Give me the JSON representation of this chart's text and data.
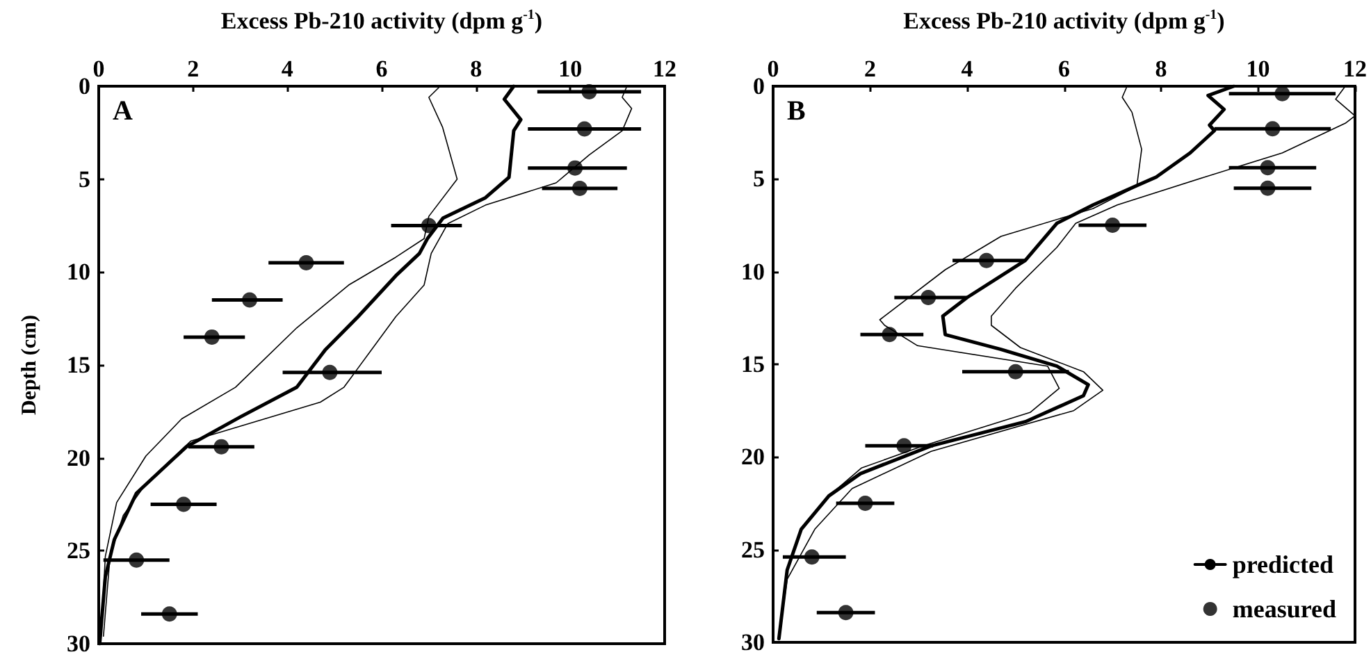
{
  "chart_data": [
    {
      "type": "line",
      "xlabel": "Excess Pb-210 activity (dpm g$^{-1}$)",
      "ylabel": "Depth (cm)",
      "annotations": [
        "A"
      ],
      "xlim": [
        0,
        12
      ],
      "xticks": [
        0,
        2,
        4,
        6,
        8,
        10,
        12
      ],
      "ylim": [
        30,
        0
      ],
      "yticks": [
        0,
        5,
        10,
        15,
        20,
        25,
        30
      ],
      "series": [
        {
          "color": "#000000",
          "marker": "none",
          "line_style": "solid",
          "x": [
            8.8,
            8.6,
            8.95,
            8.8,
            8.7,
            8.2,
            7.3,
            6.97,
            6.8,
            6.3,
            5.5,
            4.8,
            4.2,
            3.0,
            1.86,
            0.8,
            0.33,
            0.14,
            0.02
          ],
          "values": [
            0,
            0.7,
            1.8,
            2.4,
            4.9,
            6,
            7.1,
            8.2,
            9,
            10.2,
            12.4,
            14.2,
            16.2,
            17.8,
            19.4,
            21.9,
            24.4,
            26.4,
            30
          ]
        },
        {
          "color": "#000000",
          "marker": "none",
          "line_style": "solid",
          "x": [
            7.24,
            7.0,
            7.29,
            7.6,
            7.0,
            6.9,
            6.3,
            5.3,
            4.2,
            2.9,
            1.76,
            1.0,
            0.38,
            0.14,
            0.05
          ],
          "values": [
            0,
            0.6,
            2.2,
            5.0,
            7.0,
            8.2,
            9.2,
            10.7,
            13.0,
            16.2,
            17.9,
            19.9,
            22.4,
            25.3,
            29.6
          ]
        },
        {
          "color": "#000000",
          "marker": "none",
          "line_style": "solid",
          "x": [
            11.2,
            11.1,
            11.3,
            11.1,
            10.4,
            9.7,
            8.2,
            7.4,
            7.05,
            6.9,
            6.3,
            5.2,
            4.7,
            1.95,
            1.0,
            0.52,
            0.24,
            0.1
          ],
          "values": [
            0,
            0.6,
            1.2,
            2.4,
            3.7,
            5.2,
            6.4,
            7.4,
            9.0,
            10.7,
            12.4,
            16.2,
            17.0,
            19.1,
            21.4,
            23.1,
            25.3,
            29.6
          ]
        },
        {
          "type": "scatter",
          "color": "#000000",
          "marker": "circle",
          "x": [
            10.4,
            10.3,
            10.1,
            10.2,
            7.0,
            4.4,
            3.2,
            2.4,
            4.9,
            2.6,
            1.8,
            0.8,
            1.5
          ],
          "values": [
            0.3,
            2.3,
            4.4,
            5.5,
            7.5,
            9.5,
            11.5,
            13.5,
            15.4,
            19.4,
            22.5,
            25.5,
            28.4
          ],
          "xerrors": [
            [
              9.3,
              11.5
            ],
            [
              9.1,
              11.5
            ],
            [
              9.1,
              11.2
            ],
            [
              9.4,
              11.0
            ],
            [
              6.2,
              7.7
            ],
            [
              3.6,
              5.2
            ],
            [
              2.4,
              3.9
            ],
            [
              1.8,
              3.1
            ],
            [
              3.9,
              6.0
            ],
            [
              1.9,
              3.3
            ],
            [
              1.1,
              2.5
            ],
            [
              0.1,
              1.5
            ],
            [
              0.9,
              2.1
            ]
          ]
        }
      ]
    },
    {
      "type": "line",
      "xlabel": "Excess Pb-210 activity (dpm g$^{-1}$)",
      "annotations": [
        "B"
      ],
      "xlim": [
        0,
        12
      ],
      "xticks": [
        0,
        2,
        4,
        6,
        8,
        10,
        12
      ],
      "ylim": [
        30,
        0
      ],
      "yticks": [
        0,
        5,
        10,
        15,
        20,
        25,
        30
      ],
      "legend": "bottom right",
      "series": [
        {
          "name": "predicted",
          "color": "#000000",
          "marker": "none",
          "line_style": "solid",
          "x": [
            9.5,
            8.97,
            9.3,
            9.0,
            9.1,
            8.6,
            7.9,
            6.6,
            5.85,
            5.2,
            4.0,
            3.5,
            3.55,
            4.7,
            5.85,
            6.5,
            6.4,
            5.2,
            3.26,
            1.8,
            1.15,
            0.58,
            0.29,
            0.12
          ],
          "values": [
            0,
            0.5,
            1.25,
            2.1,
            2.4,
            3.6,
            4.9,
            6.4,
            7.4,
            9.4,
            11.4,
            12.4,
            13.4,
            14.2,
            15.1,
            16.1,
            16.7,
            18.1,
            19.4,
            20.9,
            22.1,
            23.9,
            26.1,
            29.8
          ]
        },
        {
          "color": "#000000",
          "marker": "none",
          "line_style": "solid",
          "x": [
            7.3,
            7.2,
            7.4,
            7.6,
            7.5,
            6.6,
            4.7,
            3.55,
            2.2,
            2.3,
            2.98,
            5.66,
            5.9,
            5.3,
            3.1,
            1.82,
            1.15,
            0.58,
            0.29,
            0.12
          ],
          "values": [
            0,
            0.6,
            1.4,
            3.4,
            5.4,
            6.6,
            8.1,
            9.9,
            12.6,
            12.9,
            14.0,
            15.1,
            16.3,
            17.6,
            19.4,
            20.6,
            22.1,
            23.9,
            26.1,
            29.8
          ]
        },
        {
          "color": "#000000",
          "marker": "none",
          "line_style": "solid",
          "x": [
            11.8,
            11.6,
            12.0,
            11.8,
            10.5,
            8.9,
            7.1,
            6.24,
            5.85,
            5.0,
            4.5,
            4.5,
            5.1,
            6.4,
            6.8,
            6.2,
            3.26,
            1.63,
            0.86,
            0.29,
            0.12
          ],
          "values": [
            0,
            0.7,
            1.6,
            2.0,
            3.6,
            4.9,
            6.4,
            7.4,
            8.7,
            10.9,
            12.4,
            12.9,
            14.1,
            15.4,
            16.4,
            17.5,
            19.7,
            21.7,
            23.9,
            26.6,
            29.8
          ]
        },
        {
          "type": "scatter",
          "name": "measured",
          "color": "#000000",
          "marker": "circle",
          "x": [
            10.5,
            10.3,
            10.2,
            10.2,
            7.0,
            4.4,
            3.2,
            2.4,
            5.0,
            2.7,
            1.9,
            0.8,
            1.5
          ],
          "values": [
            0.4,
            2.3,
            4.4,
            5.5,
            7.5,
            9.4,
            11.4,
            13.4,
            15.4,
            19.4,
            22.5,
            25.4,
            28.4
          ],
          "xerrors": [
            [
              9.4,
              11.6
            ],
            [
              9.1,
              11.5
            ],
            [
              9.4,
              11.2
            ],
            [
              9.5,
              11.1
            ],
            [
              6.3,
              7.7
            ],
            [
              3.7,
              5.2
            ],
            [
              2.5,
              4.0
            ],
            [
              1.8,
              3.1
            ],
            [
              3.9,
              6.1
            ],
            [
              1.9,
              3.3
            ],
            [
              1.3,
              2.5
            ],
            [
              0.2,
              1.5
            ],
            [
              0.9,
              2.1
            ]
          ]
        }
      ]
    }
  ]
}
